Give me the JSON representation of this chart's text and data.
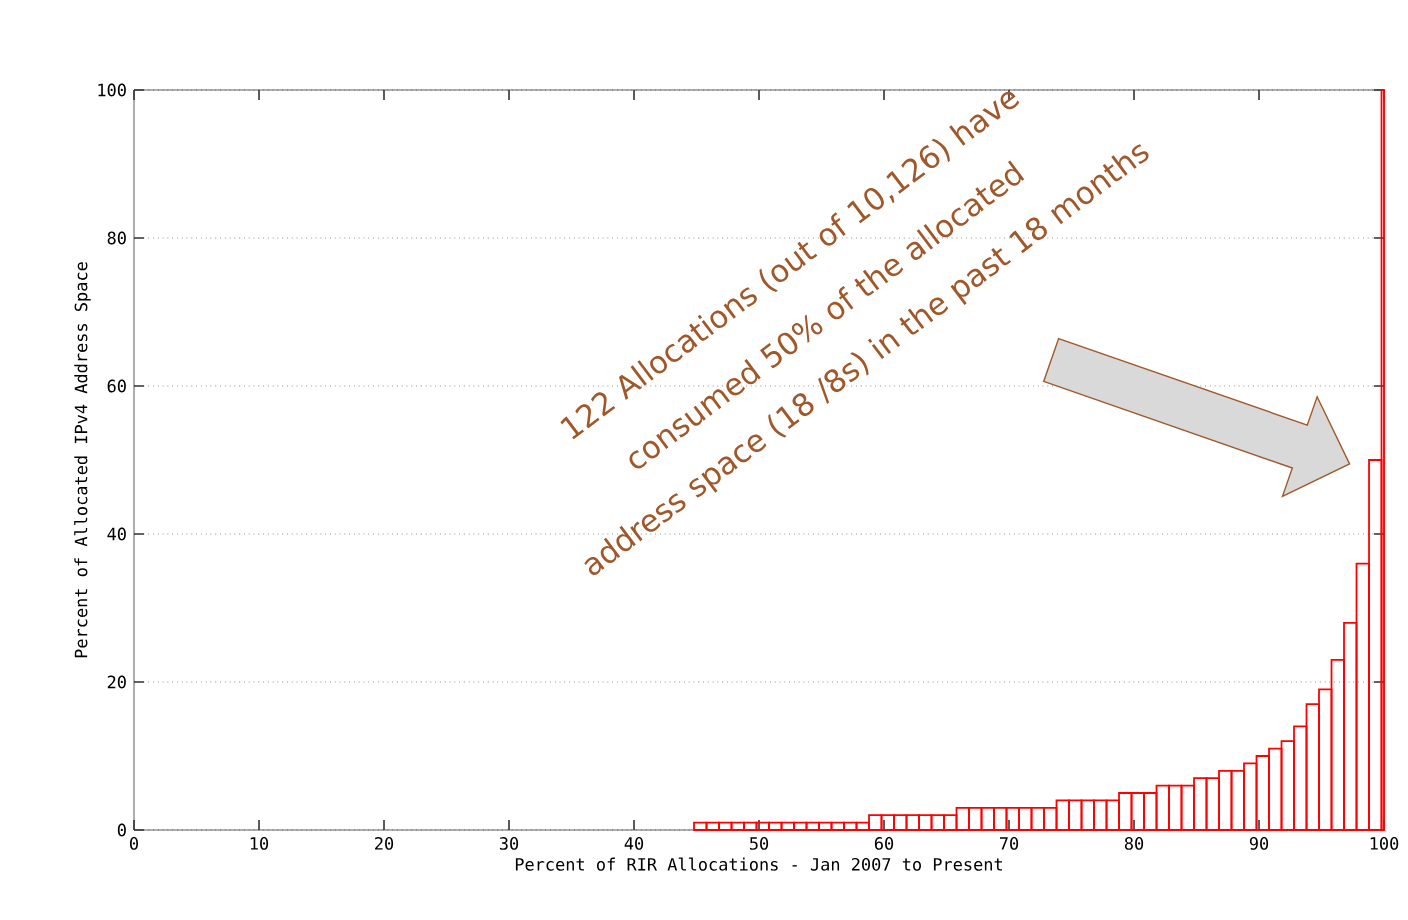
{
  "chart_data": {
    "type": "histogram",
    "xlabel": "Percent of RIR Allocations - Jan 2007 to Present",
    "ylabel": "Percent of Allocated IPv4 Address Space",
    "bins": [
      44.8,
      45.8,
      46.8,
      47.8,
      48.8,
      49.8,
      50.8,
      51.8,
      52.8,
      53.8,
      54.8,
      55.8,
      56.8,
      57.8,
      58.8,
      59.8,
      60.8,
      61.8,
      62.8,
      63.8,
      64.8,
      65.8,
      66.8,
      67.8,
      68.8,
      69.8,
      70.8,
      71.8,
      72.8,
      73.8,
      74.8,
      75.8,
      76.8,
      77.8,
      78.8,
      79.8,
      80.8,
      81.8,
      82.8,
      83.8,
      84.8,
      85.8,
      86.8,
      87.8,
      88.8,
      89.8,
      90.8,
      91.8,
      92.8,
      93.8,
      94.8,
      95.8,
      96.8,
      97.8,
      98.8,
      99.8,
      100
    ],
    "values": [
      1,
      1,
      1,
      1,
      1,
      1,
      1,
      1,
      1,
      1,
      1,
      1,
      1,
      1,
      2,
      2,
      2,
      2,
      2,
      2,
      2,
      3,
      3,
      3,
      3,
      3,
      3,
      3,
      3,
      4,
      4,
      4,
      4,
      4,
      5,
      5,
      5,
      6,
      6,
      6,
      7,
      7,
      8,
      8,
      9,
      10,
      11,
      12,
      14,
      17,
      19,
      23,
      28,
      36,
      50,
      100
    ],
    "color": "#ff0000",
    "xlim": [
      0,
      100
    ],
    "ylim": [
      0,
      100
    ],
    "xticks": [
      0,
      10,
      20,
      30,
      40,
      50,
      60,
      70,
      80,
      90,
      100
    ],
    "yticks": [
      0,
      20,
      40,
      60,
      80,
      100
    ],
    "grid": "y",
    "annotations": [
      "122 Allocations (out of 10,126) have",
      "consumed 50% of the allocated",
      "address space (18 /8s) in the past 18 months"
    ]
  }
}
